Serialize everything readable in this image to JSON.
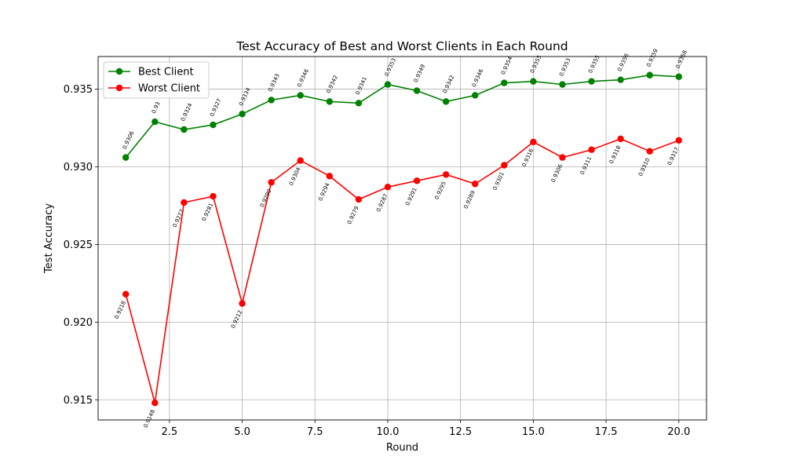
{
  "chart_data": {
    "type": "line",
    "title": "Test Accuracy of Best and Worst Clients in Each Round",
    "xlabel": "Round",
    "ylabel": "Test Accuracy",
    "xlim": [
      0.05,
      20.95
    ],
    "ylim": [
      0.9137,
      0.9371
    ],
    "xticks": [
      2.5,
      5.0,
      7.5,
      10.0,
      12.5,
      15.0,
      17.5,
      20.0
    ],
    "xtick_labels": [
      "2.5",
      "5.0",
      "7.5",
      "10.0",
      "12.5",
      "15.0",
      "17.5",
      "20.0"
    ],
    "yticks": [
      0.915,
      0.92,
      0.925,
      0.93,
      0.935
    ],
    "ytick_labels": [
      "0.915",
      "0.920",
      "0.925",
      "0.930",
      "0.935"
    ],
    "grid": true,
    "legend_position": "top-left",
    "x": [
      1,
      2,
      3,
      4,
      5,
      6,
      7,
      8,
      9,
      10,
      11,
      12,
      13,
      14,
      15,
      16,
      17,
      18,
      19,
      20
    ],
    "series": [
      {
        "name": "Best Client",
        "color": "#008000",
        "label_side": "above",
        "values": [
          0.9306,
          0.9329,
          0.9324,
          0.9327,
          0.9334,
          0.9343,
          0.9346,
          0.9342,
          0.9341,
          0.9353,
          0.9349,
          0.9342,
          0.9346,
          0.9354,
          0.9355,
          0.9353,
          0.9355,
          0.9356,
          0.9359,
          0.9358
        ],
        "labels": [
          "0.9306",
          "0.93",
          "0.9324",
          "0.9327",
          "0.9334",
          "0.9343",
          "0.9346",
          "0.9342",
          "0.9341",
          "0.9353",
          "0.9349",
          "0.9342",
          "0.9346",
          "0.9354",
          "0.9355",
          "0.9353",
          "0.9355",
          "0.9356",
          "0.9359",
          "0.9358"
        ]
      },
      {
        "name": "Worst Client",
        "color": "#ff0000",
        "label_side": "below",
        "values": [
          0.9218,
          0.9148,
          0.9277,
          0.9281,
          0.9212,
          0.929,
          0.9304,
          0.9294,
          0.9279,
          0.9287,
          0.9291,
          0.9295,
          0.9289,
          0.9301,
          0.9316,
          0.9306,
          0.9311,
          0.9318,
          0.931,
          0.9317
        ],
        "labels": [
          "0.9218",
          "0.9148",
          "0.9277",
          "0.9281",
          "0.9212",
          "0.9290",
          "0.9304",
          "0.9294",
          "0.9279",
          "0.9287",
          "0.9291",
          "0.9295",
          "0.9289",
          "0.9301",
          "0.9316",
          "0.9306",
          "0.9311",
          "0.9318",
          "0.9310",
          "0.9317"
        ]
      }
    ]
  }
}
